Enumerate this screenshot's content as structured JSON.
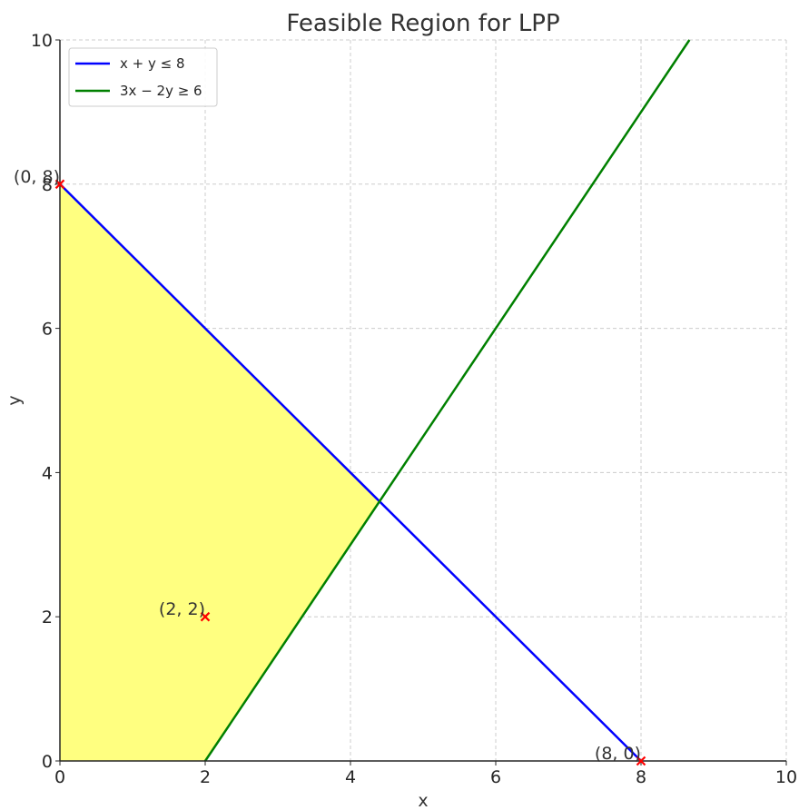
{
  "chart_data": {
    "type": "line",
    "title": "Feasible Region for LPP",
    "xlabel": "x",
    "ylabel": "y",
    "xlim": [
      0,
      10
    ],
    "ylim": [
      0,
      10
    ],
    "grid": true,
    "legend_position": "top-left",
    "xticks": [
      "0",
      "2",
      "4",
      "6",
      "8",
      "10"
    ],
    "yticks": [
      "0",
      "2",
      "4",
      "6",
      "8",
      "10"
    ],
    "series": [
      {
        "name": "x + y ≤ 8",
        "color": "#0000ff",
        "x": [
          0,
          8
        ],
        "y": [
          8,
          0
        ]
      },
      {
        "name": "3x − 2y ≥ 6",
        "color": "#008000",
        "x": [
          2,
          8.6667
        ],
        "y": [
          0,
          10
        ]
      }
    ],
    "feasible_region": {
      "color": "#ffff80",
      "vertices": [
        [
          0,
          0
        ],
        [
          0,
          8
        ],
        [
          4.4,
          3.6
        ],
        [
          2,
          0
        ]
      ]
    },
    "points": [
      {
        "label": "(0, 8)",
        "x": 0,
        "y": 8,
        "color": "#ff0000"
      },
      {
        "label": "(2, 2)",
        "x": 2,
        "y": 2,
        "color": "#ff0000"
      },
      {
        "label": "(8, 0)",
        "x": 8,
        "y": 0,
        "color": "#ff0000"
      }
    ]
  }
}
